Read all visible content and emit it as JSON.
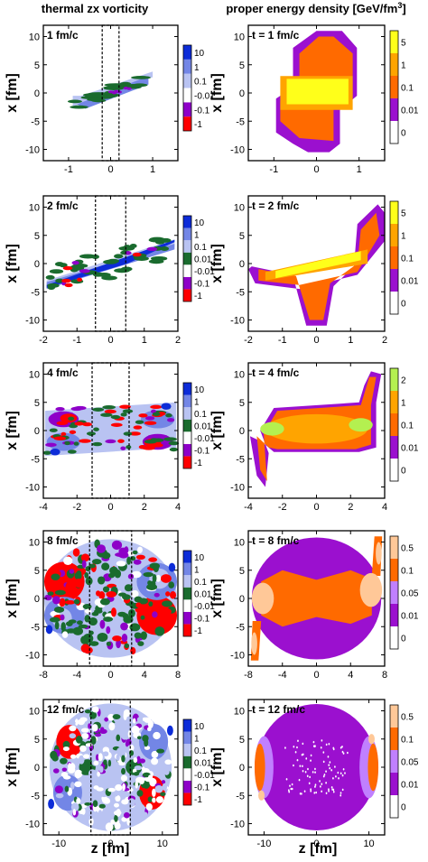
{
  "column_titles": {
    "left": "thermal zx vorticity",
    "right_prefix": "proper energy density [GeV/fm",
    "right_sup": "3",
    "right_suffix": "]"
  },
  "y_label": "x [fm]",
  "x_label": "z [fm]",
  "colors": {
    "vort": [
      "#ff0000",
      "#8e00c8",
      "#ffffff",
      "#1a6b2e",
      "#b9c3f2",
      "#7386e6",
      "#0d2cd8"
    ],
    "energy_common": [
      "#ffffff",
      "#9b10cf",
      "#ff6a00",
      "#ffa400",
      "#ffff1a"
    ],
    "energy_t4_top": "#b4f050",
    "energy_t8": [
      "#ffffff",
      "#9b10cf",
      "#c080ff",
      "#ff6a00",
      "#ffc898"
    ],
    "frame": "#000000"
  },
  "chart_data": [
    {
      "type": "heatmap",
      "panel": "vorticity",
      "time_label": "1 fm/c",
      "xlim": [
        -1.6,
        1.6
      ],
      "ylim": [
        -12,
        12
      ],
      "xticks": [
        "-1",
        "0",
        "1"
      ],
      "xtick_values": [
        -1,
        0,
        1
      ],
      "yticks": [
        "10",
        "5",
        "0",
        "-5",
        "-10"
      ],
      "ytick_values": [
        10,
        5,
        0,
        -5,
        -10
      ],
      "legend": [
        "10",
        "1",
        "0.1",
        "-0.01",
        "-0.1",
        "-1"
      ],
      "dashed_box_z": [
        -0.2,
        0.2
      ]
    },
    {
      "type": "heatmap",
      "panel": "energy",
      "time_label": "t = 1 fm/c",
      "xlim": [
        -1.6,
        1.6
      ],
      "ylim": [
        -12,
        12
      ],
      "xticks": [
        "-1",
        "0",
        "1"
      ],
      "xtick_values": [
        -1,
        0,
        1
      ],
      "yticks": [
        "10",
        "5",
        "0",
        "-5",
        "-10"
      ],
      "ytick_values": [
        10,
        5,
        0,
        -5,
        -10
      ],
      "legend": [
        "5",
        "1",
        "0.1",
        "0.01",
        "0"
      ]
    },
    {
      "type": "heatmap",
      "panel": "vorticity",
      "time_label": "2 fm/c",
      "xlim": [
        -2,
        2
      ],
      "ylim": [
        -12,
        12
      ],
      "xticks": [
        "-2",
        "-1",
        "0",
        "1",
        "2"
      ],
      "xtick_values": [
        -2,
        -1,
        0,
        1,
        2
      ],
      "yticks": [
        "10",
        "5",
        "0",
        "-5",
        "-10"
      ],
      "ytick_values": [
        10,
        5,
        0,
        -5,
        -10
      ],
      "legend": [
        "10",
        "1",
        "0.1",
        "0.01",
        "-0.01",
        "-0.1",
        "-1"
      ],
      "dashed_box_z": [
        -0.45,
        0.45
      ]
    },
    {
      "type": "heatmap",
      "panel": "energy",
      "time_label": "t = 2 fm/c",
      "xlim": [
        -2,
        2
      ],
      "ylim": [
        -12,
        12
      ],
      "xticks": [
        "-2",
        "-1",
        "0",
        "1",
        "2"
      ],
      "xtick_values": [
        -2,
        -1,
        0,
        1,
        2
      ],
      "yticks": [
        "10",
        "5",
        "0",
        "-5",
        "-10"
      ],
      "ytick_values": [
        10,
        5,
        0,
        -5,
        -10
      ],
      "legend": [
        "5",
        "1",
        "0.1",
        "0.01",
        "0"
      ]
    },
    {
      "type": "heatmap",
      "panel": "vorticity",
      "time_label": "4 fm/c",
      "xlim": [
        -4,
        4
      ],
      "ylim": [
        -12,
        12
      ],
      "xticks": [
        "-4",
        "-2",
        "0",
        "2",
        "4"
      ],
      "xtick_values": [
        -4,
        -2,
        0,
        2,
        4
      ],
      "yticks": [
        "10",
        "5",
        "0",
        "-5",
        "-10"
      ],
      "ytick_values": [
        10,
        5,
        0,
        -5,
        -10
      ],
      "legend": [
        "10",
        "1",
        "0.1",
        "0.01",
        "-0.01",
        "-0.1",
        "-1"
      ],
      "dashed_box_z": [
        -1.1,
        1.1
      ]
    },
    {
      "type": "heatmap",
      "panel": "energy",
      "time_label": "t = 4 fm/c",
      "xlim": [
        -4,
        4
      ],
      "ylim": [
        -12,
        12
      ],
      "xticks": [
        "-4",
        "-2",
        "0",
        "2",
        "4"
      ],
      "xtick_values": [
        -4,
        -2,
        0,
        2,
        4
      ],
      "yticks": [
        "10",
        "5",
        "0",
        "-5",
        "-10"
      ],
      "ytick_values": [
        10,
        5,
        0,
        -5,
        -10
      ],
      "legend": [
        "2",
        "1",
        "0.1",
        "0.01",
        "0"
      ]
    },
    {
      "type": "heatmap",
      "panel": "vorticity",
      "time_label": "8 fm/c",
      "xlim": [
        -8,
        8
      ],
      "ylim": [
        -12,
        12
      ],
      "xticks": [
        "-8",
        "-4",
        "0",
        "4",
        "8"
      ],
      "xtick_values": [
        -8,
        -4,
        0,
        4,
        8
      ],
      "yticks": [
        "10",
        "5",
        "0",
        "-5",
        "-10"
      ],
      "ytick_values": [
        10,
        5,
        0,
        -5,
        -10
      ],
      "legend": [
        "10",
        "1",
        "0.1",
        "0.01",
        "-0.01",
        "-0.1",
        "-1"
      ],
      "dashed_box_z": [
        -2.5,
        2.5
      ]
    },
    {
      "type": "heatmap",
      "panel": "energy",
      "time_label": "t = 8 fm/c",
      "xlim": [
        -8,
        8
      ],
      "ylim": [
        -12,
        12
      ],
      "xticks": [
        "-8",
        "-4",
        "0",
        "4",
        "8"
      ],
      "xtick_values": [
        -8,
        -4,
        0,
        4,
        8
      ],
      "yticks": [
        "10",
        "5",
        "0",
        "-5",
        "-10"
      ],
      "ytick_values": [
        10,
        5,
        0,
        -5,
        -10
      ],
      "legend": [
        "0.5",
        "0.1",
        "0.05",
        "0.01",
        "0"
      ]
    },
    {
      "type": "heatmap",
      "panel": "vorticity",
      "time_label": "12 fm/c",
      "xlim": [
        -13,
        13
      ],
      "ylim": [
        -12,
        12
      ],
      "xticks": [
        "-10",
        "0",
        "10"
      ],
      "xtick_values": [
        -10,
        0,
        10
      ],
      "yticks": [
        "10",
        "5",
        "0",
        "-5",
        "-10"
      ],
      "ytick_values": [
        10,
        5,
        0,
        -5,
        -10
      ],
      "legend": [
        "10",
        "1",
        "0.1",
        "0.01",
        "-0.01",
        "-0.1",
        "-1"
      ],
      "dashed_box_z": [
        -3.8,
        3.8
      ]
    },
    {
      "type": "heatmap",
      "panel": "energy",
      "time_label": "t = 12 fm/c",
      "xlim": [
        -13,
        13
      ],
      "ylim": [
        -12,
        12
      ],
      "xticks": [
        "-10",
        "0",
        "10"
      ],
      "xtick_values": [
        -10,
        0,
        10
      ],
      "yticks": [
        "10",
        "5",
        "0",
        "-5",
        "-10"
      ],
      "ytick_values": [
        10,
        5,
        0,
        -5,
        -10
      ],
      "legend": [
        "0.5",
        "0.1",
        "0.05",
        "0.01",
        "0"
      ]
    }
  ]
}
